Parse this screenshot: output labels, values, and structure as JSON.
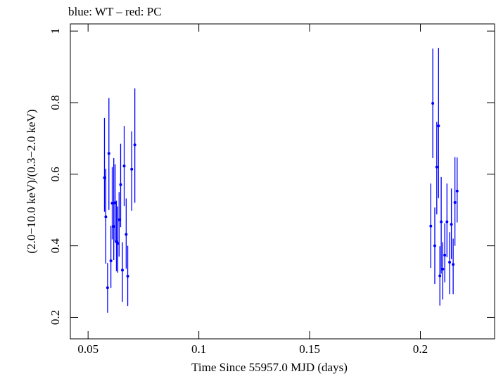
{
  "header": {
    "text": "blue: WT – red: PC"
  },
  "chart_data": {
    "type": "scatter",
    "title": "",
    "xlabel": "Time Since 55957.0 MJD (days)",
    "ylabel": "(2.0−10.0 keV)/(0.3−2.0 keV)",
    "xlim": [
      0.042,
      0.2335
    ],
    "ylim": [
      0.14,
      1.02
    ],
    "xticks": [
      0.05,
      0.1,
      0.15,
      0.2
    ],
    "xtick_labels": [
      "0.05",
      "0.1",
      "0.15",
      "0.2"
    ],
    "yticks": [
      0.2,
      0.4,
      0.6,
      0.8,
      1.0
    ],
    "ytick_labels": [
      "0.2",
      "0.4",
      "0.6",
      "0.8",
      "1"
    ],
    "grid": false,
    "series": [
      {
        "name": "WT",
        "color": "#0000ff",
        "points": [
          {
            "x": 0.0574,
            "y": 0.59,
            "lo": 0.495,
            "hi": 0.757
          },
          {
            "x": 0.058,
            "y": 0.481,
            "lo": 0.35,
            "hi": 0.615
          },
          {
            "x": 0.0588,
            "y": 0.283,
            "lo": 0.213,
            "hi": 0.352
          },
          {
            "x": 0.0594,
            "y": 0.658,
            "lo": 0.5,
            "hi": 0.813
          },
          {
            "x": 0.0603,
            "y": 0.358,
            "lo": 0.282,
            "hi": 0.456
          },
          {
            "x": 0.0609,
            "y": 0.519,
            "lo": 0.418,
            "hi": 0.62
          },
          {
            "x": 0.0616,
            "y": 0.454,
            "lo": 0.36,
            "hi": 0.645
          },
          {
            "x": 0.0622,
            "y": 0.52,
            "lo": 0.412,
            "hi": 0.628
          },
          {
            "x": 0.0628,
            "y": 0.411,
            "lo": 0.329,
            "hi": 0.526
          },
          {
            "x": 0.0634,
            "y": 0.407,
            "lo": 0.325,
            "hi": 0.51
          },
          {
            "x": 0.064,
            "y": 0.473,
            "lo": 0.37,
            "hi": 0.55
          },
          {
            "x": 0.0647,
            "y": 0.571,
            "lo": 0.452,
            "hi": 0.685
          },
          {
            "x": 0.0655,
            "y": 0.332,
            "lo": 0.243,
            "hi": 0.41
          },
          {
            "x": 0.0663,
            "y": 0.623,
            "lo": 0.511,
            "hi": 0.735
          },
          {
            "x": 0.0672,
            "y": 0.432,
            "lo": 0.336,
            "hi": 0.532
          },
          {
            "x": 0.0679,
            "y": 0.315,
            "lo": 0.232,
            "hi": 0.4
          },
          {
            "x": 0.0697,
            "y": 0.614,
            "lo": 0.498,
            "hi": 0.72
          },
          {
            "x": 0.0711,
            "y": 0.682,
            "lo": 0.52,
            "hi": 0.84
          },
          {
            "x": 0.2047,
            "y": 0.455,
            "lo": 0.338,
            "hi": 0.574
          },
          {
            "x": 0.2056,
            "y": 0.798,
            "lo": 0.645,
            "hi": 0.951
          },
          {
            "x": 0.2065,
            "y": 0.4,
            "lo": 0.293,
            "hi": 0.507
          },
          {
            "x": 0.2074,
            "y": 0.62,
            "lo": 0.488,
            "hi": 0.746
          },
          {
            "x": 0.2082,
            "y": 0.735,
            "lo": 0.533,
            "hi": 0.953
          },
          {
            "x": 0.2088,
            "y": 0.316,
            "lo": 0.233,
            "hi": 0.399
          },
          {
            "x": 0.2094,
            "y": 0.467,
            "lo": 0.322,
            "hi": 0.592
          },
          {
            "x": 0.2101,
            "y": 0.335,
            "lo": 0.25,
            "hi": 0.41
          },
          {
            "x": 0.211,
            "y": 0.374,
            "lo": 0.298,
            "hi": 0.463
          },
          {
            "x": 0.212,
            "y": 0.467,
            "lo": 0.368,
            "hi": 0.574
          },
          {
            "x": 0.2132,
            "y": 0.354,
            "lo": 0.265,
            "hi": 0.438
          },
          {
            "x": 0.214,
            "y": 0.46,
            "lo": 0.363,
            "hi": 0.56
          },
          {
            "x": 0.2148,
            "y": 0.348,
            "lo": 0.265,
            "hi": 0.42
          },
          {
            "x": 0.2156,
            "y": 0.521,
            "lo": 0.4,
            "hi": 0.648
          },
          {
            "x": 0.2166,
            "y": 0.553,
            "lo": 0.465,
            "hi": 0.647
          }
        ]
      }
    ]
  }
}
